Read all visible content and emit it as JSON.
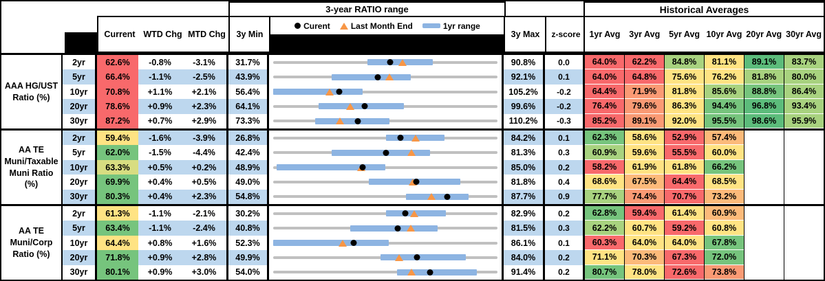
{
  "header": {
    "chart_group_title": "3-year RATIO range",
    "averages_group_title": "Historical Averages",
    "columns": {
      "current": "Current",
      "wtd": "WTD Chg",
      "mtd": "MTD Chg",
      "min3y": "3y Min",
      "max3y": "3y Max",
      "zscore": "z-score",
      "averages": [
        "1yr Avg",
        "3yr Avg",
        "5yr Avg",
        "10yr Avg",
        "20yr Avg",
        "30yr Avg"
      ]
    },
    "legend": {
      "dot": "Curent",
      "triangle": "Last Month End",
      "bar": "1yr range"
    }
  },
  "palette": {
    "red": "#F8696B",
    "orange": "#FA9A74",
    "lightOrange": "#FCBA7A",
    "yellow": "#FFE383",
    "yellowGreen": "#D8DD81",
    "lightGreen": "#A8D27F",
    "green": "#76C47D",
    "deepGreen": "#5CBC7B",
    "stripe": "#BDD7EE",
    "bar1yr": "#8DB4E2",
    "rangeLine": "#C0C0C0",
    "triangle": "#F79646"
  },
  "sections": [
    {
      "label": "AAA HG/UST\nRatio (%)",
      "rows": [
        {
          "tenor": "2yr",
          "current": "62.6%",
          "current_color": "red",
          "wtd": "-0.8%",
          "mtd": "-3.1%",
          "min": "31.7%",
          "max": "90.8%",
          "z": "0.0",
          "avgs": [
            {
              "v": "64.0%",
              "c": "red"
            },
            {
              "v": "62.2%",
              "c": "red"
            },
            {
              "v": "84.8%",
              "c": "lightGreen"
            },
            {
              "v": "81.1%",
              "c": "yellow"
            },
            {
              "v": "89.1%",
              "c": "deepGreen"
            },
            {
              "v": "83.7%",
              "c": "lightGreen"
            }
          ]
        },
        {
          "tenor": "5yr",
          "current": "66.4%",
          "current_color": "red",
          "wtd": "-1.1%",
          "mtd": "-2.5%",
          "min": "43.9%",
          "max": "92.1%",
          "z": "0.1",
          "avgs": [
            {
              "v": "64.0%",
              "c": "red"
            },
            {
              "v": "64.8%",
              "c": "red"
            },
            {
              "v": "75.6%",
              "c": "yellow"
            },
            {
              "v": "76.2%",
              "c": "yellow"
            },
            {
              "v": "81.8%",
              "c": "lightGreen"
            },
            {
              "v": "80.0%",
              "c": "lightGreen"
            }
          ]
        },
        {
          "tenor": "10yr",
          "current": "70.8%",
          "current_color": "red",
          "wtd": "+1.1%",
          "mtd": "+2.1%",
          "min": "56.4%",
          "max": "105.2%",
          "z": "-0.2",
          "avgs": [
            {
              "v": "64.4%",
              "c": "red"
            },
            {
              "v": "71.9%",
              "c": "orange"
            },
            {
              "v": "81.8%",
              "c": "yellow"
            },
            {
              "v": "85.6%",
              "c": "lightGreen"
            },
            {
              "v": "88.8%",
              "c": "green"
            },
            {
              "v": "86.4%",
              "c": "lightGreen"
            }
          ]
        },
        {
          "tenor": "20yr",
          "current": "78.6%",
          "current_color": "red",
          "wtd": "+0.9%",
          "mtd": "+2.3%",
          "min": "64.1%",
          "max": "99.6%",
          "z": "-0.2",
          "avgs": [
            {
              "v": "76.4%",
              "c": "red"
            },
            {
              "v": "79.6%",
              "c": "orange"
            },
            {
              "v": "86.3%",
              "c": "yellow"
            },
            {
              "v": "94.4%",
              "c": "green"
            },
            {
              "v": "96.8%",
              "c": "deepGreen"
            },
            {
              "v": "93.4%",
              "c": "lightGreen"
            }
          ]
        },
        {
          "tenor": "30yr",
          "current": "87.2%",
          "current_color": "red",
          "wtd": "+0.7%",
          "mtd": "+2.9%",
          "min": "73.3%",
          "max": "110.2%",
          "z": "-0.3",
          "avgs": [
            {
              "v": "85.2%",
              "c": "red"
            },
            {
              "v": "89.1%",
              "c": "orange"
            },
            {
              "v": "92.0%",
              "c": "yellow"
            },
            {
              "v": "95.5%",
              "c": "green"
            },
            {
              "v": "98.6%",
              "c": "deepGreen"
            },
            {
              "v": "95.9%",
              "c": "lightGreen"
            }
          ]
        }
      ]
    },
    {
      "label": "AA TE\nMuni/Taxable\nMuni Ratio\n(%)",
      "rows": [
        {
          "tenor": "2yr",
          "current": "59.4%",
          "current_color": "yellow",
          "wtd": "-1.6%",
          "mtd": "-3.9%",
          "min": "26.8%",
          "max": "84.2%",
          "z": "0.1",
          "avgs": [
            {
              "v": "62.3%",
              "c": "green"
            },
            {
              "v": "58.6%",
              "c": "yellow"
            },
            {
              "v": "52.9%",
              "c": "red"
            },
            {
              "v": "57.4%",
              "c": "lightOrange"
            },
            null,
            null
          ]
        },
        {
          "tenor": "5yr",
          "current": "62.0%",
          "current_color": "green",
          "wtd": "-1.5%",
          "mtd": "-4.4%",
          "min": "42.4%",
          "max": "81.3%",
          "z": "0.3",
          "avgs": [
            {
              "v": "60.9%",
              "c": "lightGreen"
            },
            {
              "v": "59.6%",
              "c": "yellow"
            },
            {
              "v": "55.5%",
              "c": "red"
            },
            {
              "v": "60.0%",
              "c": "yellow"
            },
            null,
            null
          ]
        },
        {
          "tenor": "10yr",
          "current": "63.3%",
          "current_color": "yellowGreen",
          "wtd": "+0.5%",
          "mtd": "+0.2%",
          "min": "48.9%",
          "max": "85.0%",
          "z": "0.2",
          "avgs": [
            {
              "v": "58.2%",
              "c": "red"
            },
            {
              "v": "61.9%",
              "c": "yellow"
            },
            {
              "v": "61.8%",
              "c": "yellow"
            },
            {
              "v": "66.2%",
              "c": "green"
            },
            null,
            null
          ]
        },
        {
          "tenor": "20yr",
          "current": "69.9%",
          "current_color": "green",
          "wtd": "+0.4%",
          "mtd": "+0.5%",
          "min": "49.0%",
          "max": "81.8%",
          "z": "0.4",
          "avgs": [
            {
              "v": "68.6%",
              "c": "yellow"
            },
            {
              "v": "67.5%",
              "c": "lightOrange"
            },
            {
              "v": "64.4%",
              "c": "red"
            },
            {
              "v": "68.5%",
              "c": "yellow"
            },
            null,
            null
          ]
        },
        {
          "tenor": "30yr",
          "current": "80.3%",
          "current_color": "green",
          "wtd": "+0.4%",
          "mtd": "+2.3%",
          "min": "54.8%",
          "max": "87.7%",
          "z": "0.9",
          "avgs": [
            {
              "v": "77.7%",
              "c": "lightGreen"
            },
            {
              "v": "74.4%",
              "c": "orange"
            },
            {
              "v": "70.7%",
              "c": "red"
            },
            {
              "v": "73.2%",
              "c": "lightOrange"
            },
            null,
            null
          ]
        }
      ]
    },
    {
      "label": "AA TE\nMuni/Corp\nRatio (%)",
      "rows": [
        {
          "tenor": "2yr",
          "current": "61.3%",
          "current_color": "yellow",
          "wtd": "-1.1%",
          "mtd": "-2.1%",
          "min": "30.2%",
          "max": "82.9%",
          "z": "0.2",
          "avgs": [
            {
              "v": "62.8%",
              "c": "green"
            },
            {
              "v": "59.4%",
              "c": "red"
            },
            {
              "v": "61.4%",
              "c": "yellow"
            },
            {
              "v": "60.9%",
              "c": "lightOrange"
            },
            null,
            null
          ]
        },
        {
          "tenor": "5yr",
          "current": "63.4%",
          "current_color": "green",
          "wtd": "-1.1%",
          "mtd": "-2.4%",
          "min": "40.8%",
          "max": "81.5%",
          "z": "0.3",
          "avgs": [
            {
              "v": "62.2%",
              "c": "lightGreen"
            },
            {
              "v": "60.7%",
              "c": "yellow"
            },
            {
              "v": "59.2%",
              "c": "red"
            },
            {
              "v": "60.8%",
              "c": "yellow"
            },
            null,
            null
          ]
        },
        {
          "tenor": "10yr",
          "current": "64.4%",
          "current_color": "yellow",
          "wtd": "+0.8%",
          "mtd": "+1.6%",
          "min": "52.3%",
          "max": "86.1%",
          "z": "0.1",
          "avgs": [
            {
              "v": "60.3%",
              "c": "red"
            },
            {
              "v": "64.0%",
              "c": "yellow"
            },
            {
              "v": "64.0%",
              "c": "yellow"
            },
            {
              "v": "67.8%",
              "c": "green"
            },
            null,
            null
          ]
        },
        {
          "tenor": "20yr",
          "current": "71.8%",
          "current_color": "green",
          "wtd": "+0.9%",
          "mtd": "+2.8%",
          "min": "49.9%",
          "max": "84.0%",
          "z": "0.2",
          "avgs": [
            {
              "v": "71.1%",
              "c": "yellow"
            },
            {
              "v": "70.3%",
              "c": "lightOrange"
            },
            {
              "v": "67.3%",
              "c": "red"
            },
            {
              "v": "72.0%",
              "c": "green"
            },
            null,
            null
          ]
        },
        {
          "tenor": "30yr",
          "current": "80.1%",
          "current_color": "green",
          "wtd": "+0.9%",
          "mtd": "+3.0%",
          "min": "54.0%",
          "max": "91.4%",
          "z": "0.2",
          "avgs": [
            {
              "v": "80.7%",
              "c": "green"
            },
            {
              "v": "78.0%",
              "c": "yellow"
            },
            {
              "v": "72.6%",
              "c": "red"
            },
            {
              "v": "73.8%",
              "c": "orange"
            },
            null,
            null
          ]
        }
      ]
    }
  ],
  "chart_data": {
    "type": "range-dot",
    "title": "3-year RATIO range",
    "legend": [
      "Curent",
      "Last Month End",
      "1yr range"
    ],
    "axis": "each row scaled from its 3y Min to 3y Max (%)",
    "rows": [
      {
        "section": "AAA HG/UST Ratio (%)",
        "tenor": "2yr",
        "min_3y": 31.7,
        "max_3y": 90.8,
        "bar_1yr": [
          56.6,
          73.7
        ],
        "current": 62.6,
        "last_month_end": 65.7
      },
      {
        "section": "AAA HG/UST Ratio (%)",
        "tenor": "5yr",
        "min_3y": 43.9,
        "max_3y": 92.1,
        "bar_1yr": [
          56.5,
          73.5
        ],
        "current": 66.4,
        "last_month_end": 68.9
      },
      {
        "section": "AAA HG/UST Ratio (%)",
        "tenor": "10yr",
        "min_3y": 56.4,
        "max_3y": 105.2,
        "bar_1yr": [
          56.4,
          75.8
        ],
        "current": 70.8,
        "last_month_end": 68.7
      },
      {
        "section": "AAA HG/UST Ratio (%)",
        "tenor": "20yr",
        "min_3y": 64.1,
        "max_3y": 99.6,
        "bar_1yr": [
          71.3,
          84.8
        ],
        "current": 78.6,
        "last_month_end": 76.3
      },
      {
        "section": "AAA HG/UST Ratio (%)",
        "tenor": "30yr",
        "min_3y": 73.3,
        "max_3y": 110.2,
        "bar_1yr": [
          80.2,
          92.4
        ],
        "current": 87.2,
        "last_month_end": 84.3
      },
      {
        "section": "AA TE Muni/Taxable Muni Ratio (%)",
        "tenor": "2yr",
        "min_3y": 26.8,
        "max_3y": 84.2,
        "bar_1yr": [
          55.7,
          70.7
        ],
        "current": 59.4,
        "last_month_end": 63.3
      },
      {
        "section": "AA TE Muni/Taxable Muni Ratio (%)",
        "tenor": "5yr",
        "min_3y": 42.4,
        "max_3y": 81.3,
        "bar_1yr": [
          52.6,
          69.6
        ],
        "current": 62.0,
        "last_month_end": 66.4
      },
      {
        "section": "AA TE Muni/Taxable Muni Ratio (%)",
        "tenor": "10yr",
        "min_3y": 48.9,
        "max_3y": 85.0,
        "bar_1yr": [
          49.5,
          67.0
        ],
        "current": 63.3,
        "last_month_end": 63.1
      },
      {
        "section": "AA TE Muni/Taxable Muni Ratio (%)",
        "tenor": "20yr",
        "min_3y": 49.0,
        "max_3y": 81.8,
        "bar_1yr": [
          63.0,
          76.4
        ],
        "current": 69.9,
        "last_month_end": 69.4
      },
      {
        "section": "AA TE Muni/Taxable Muni Ratio (%)",
        "tenor": "30yr",
        "min_3y": 54.8,
        "max_3y": 87.7,
        "bar_1yr": [
          74.3,
          83.5
        ],
        "current": 80.3,
        "last_month_end": 78.0
      },
      {
        "section": "AA TE Muni/Corp Ratio (%)",
        "tenor": "2yr",
        "min_3y": 30.2,
        "max_3y": 82.9,
        "bar_1yr": [
          56.7,
          70.7
        ],
        "current": 61.3,
        "last_month_end": 63.4
      },
      {
        "section": "AA TE Muni/Corp Ratio (%)",
        "tenor": "5yr",
        "min_3y": 40.8,
        "max_3y": 81.5,
        "bar_1yr": [
          54.8,
          70.7
        ],
        "current": 63.4,
        "last_month_end": 65.8
      },
      {
        "section": "AA TE Muni/Corp Ratio (%)",
        "tenor": "10yr",
        "min_3y": 52.3,
        "max_3y": 86.1,
        "bar_1yr": [
          52.3,
          69.7
        ],
        "current": 64.4,
        "last_month_end": 62.8
      },
      {
        "section": "AA TE Muni/Corp Ratio (%)",
        "tenor": "20yr",
        "min_3y": 49.9,
        "max_3y": 84.0,
        "bar_1yr": [
          66.2,
          79.2
        ],
        "current": 71.8,
        "last_month_end": 69.0
      },
      {
        "section": "AA TE Muni/Corp Ratio (%)",
        "tenor": "30yr",
        "min_3y": 54.0,
        "max_3y": 91.4,
        "bar_1yr": [
          74.7,
          88.0
        ],
        "current": 80.1,
        "last_month_end": 77.1
      }
    ]
  }
}
